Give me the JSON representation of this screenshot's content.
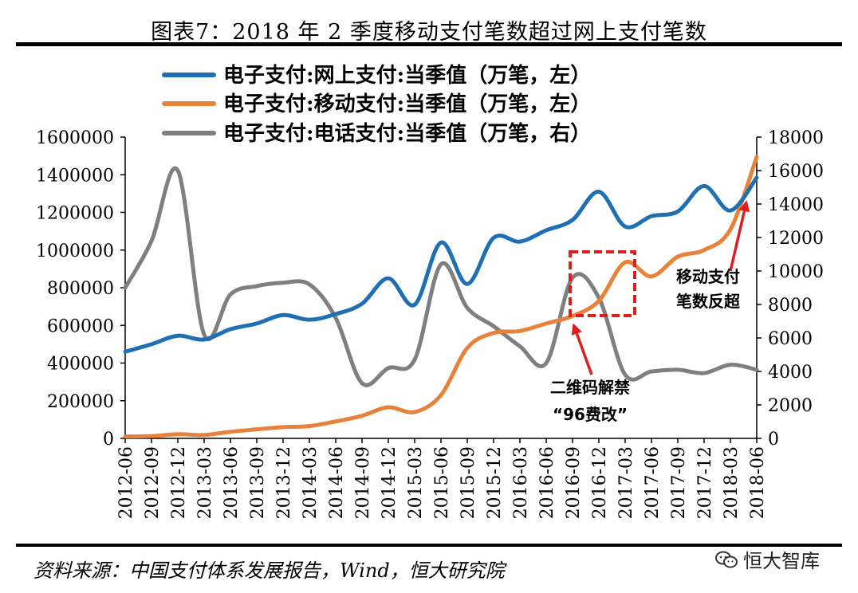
{
  "title": "图表7：2018 年 2 季度移动支付笔数超过网上支付笔数",
  "source": "资料来源：中国支付体系发展报告，Wind，恒大研究院",
  "watermark": "恒大智库",
  "chart_data": {
    "type": "line",
    "x": [
      "2012-06",
      "2012-09",
      "2012-12",
      "2013-03",
      "2013-06",
      "2013-09",
      "2013-12",
      "2014-03",
      "2014-06",
      "2014-09",
      "2014-12",
      "2015-03",
      "2015-06",
      "2015-09",
      "2015-12",
      "2016-03",
      "2016-06",
      "2016-09",
      "2016-12",
      "2017-03",
      "2017-06",
      "2017-09",
      "2017-12",
      "2018-03",
      "2018-06"
    ],
    "ylim_left": [
      0,
      1600000
    ],
    "ylim_right": [
      0,
      18000
    ],
    "yticks_left": [
      0,
      200000,
      400000,
      600000,
      800000,
      1000000,
      1200000,
      1400000,
      1600000
    ],
    "yticks_right": [
      0,
      2000,
      4000,
      6000,
      8000,
      10000,
      12000,
      14000,
      16000,
      18000
    ],
    "grid": false,
    "legend_position": "top",
    "series": [
      {
        "name": "电子支付:网上支付:当季值（万笔，左）",
        "axis": "left",
        "color": "#1f6fb5",
        "values": [
          460000,
          500000,
          545000,
          525000,
          580000,
          610000,
          655000,
          630000,
          660000,
          715000,
          850000,
          710000,
          1040000,
          820000,
          1065000,
          1045000,
          1105000,
          1160000,
          1310000,
          1125000,
          1180000,
          1205000,
          1340000,
          1210000,
          1385000
        ]
      },
      {
        "name": "电子支付:移动支付:当季值（万笔，左）",
        "axis": "left",
        "color": "#e8813a",
        "values": [
          10000,
          12000,
          22000,
          18000,
          35000,
          48000,
          60000,
          65000,
          90000,
          120000,
          165000,
          140000,
          230000,
          480000,
          560000,
          570000,
          610000,
          650000,
          730000,
          935000,
          860000,
          965000,
          1000000,
          1110000,
          1495000
        ]
      },
      {
        "name": "电子支付:电话支付:当季值（万笔，右）",
        "axis": "right",
        "color": "#7f7f7f",
        "values": [
          9000,
          11800,
          16000,
          6200,
          8600,
          9100,
          9300,
          9200,
          7200,
          3300,
          4200,
          4700,
          10400,
          7800,
          6700,
          5500,
          4500,
          9600,
          8400,
          3800,
          4000,
          4100,
          3900,
          4400,
          4100
        ]
      }
    ],
    "annotations": [
      {
        "text_lines": [
          "二维码解禁",
          "“96费改”"
        ]
      },
      {
        "text_lines": [
          "移动支付",
          "笔数反超"
        ]
      }
    ]
  }
}
